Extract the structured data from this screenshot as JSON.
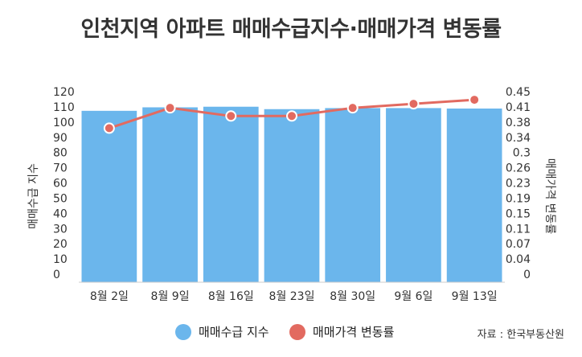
{
  "title": "인천지역 아파트 매매수급지수·매매가격 변동률",
  "source": "자료 : 한국부동산원",
  "colors": {
    "bar": "#6bb6ec",
    "line": "#e26a60",
    "marker_fill": "#e26a60",
    "marker_stroke": "#ffffff",
    "axis": "#cccccc"
  },
  "chart_data": {
    "type": "bar",
    "categories": [
      "8월 2일",
      "8월 9일",
      "8월 16일",
      "8월 23일",
      "8월 30일",
      "9월 6일",
      "9월 13일"
    ],
    "series": [
      {
        "name": "매매수급 지수",
        "type": "bar",
        "axis": "left",
        "values": [
          107.4,
          109.7,
          110.1,
          108.5,
          109.2,
          109.2,
          108.9
        ]
      },
      {
        "name": "매매가격 변동률",
        "type": "line",
        "axis": "right",
        "values": [
          0.36,
          0.41,
          0.39,
          0.39,
          0.41,
          0.42,
          0.43
        ]
      }
    ],
    "y_left": {
      "label": "매매수급 지수",
      "ticks": [
        "120",
        "110",
        "100",
        "90",
        "80",
        "70",
        "60",
        "50",
        "40",
        "30",
        "20",
        "10",
        "0"
      ],
      "ylim": [
        0,
        120
      ]
    },
    "y_right": {
      "label": "매매가격 변동률",
      "ticks": [
        "0.45",
        "0.41",
        "0.38",
        "0.34",
        "0.3",
        "0.26",
        "0.23",
        "0.19",
        "0.15",
        "0.11",
        "0.07",
        "0.04",
        "0"
      ],
      "ylim": [
        0,
        0.45
      ]
    },
    "grid": false,
    "legend_position": "bottom-center"
  }
}
